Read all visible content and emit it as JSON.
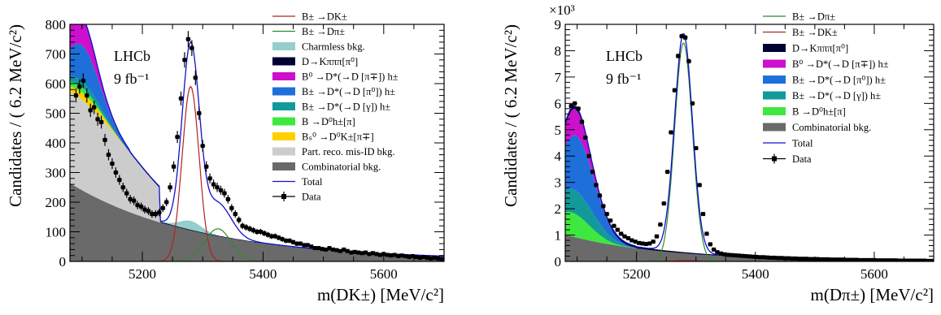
{
  "chart_data": [
    {
      "type": "line",
      "panel": "left",
      "experiment_label": "LHCb",
      "luminosity_label": "9 fb⁻¹",
      "ylabel": "Candidates / ( 6.2 MeV/c²)",
      "xlabel": "m(DK±) [MeV/c²]",
      "xlim": [
        5080,
        5700
      ],
      "ylim": [
        0,
        800
      ],
      "y_multiplier": "",
      "x_ticks": [
        "5200",
        "5400",
        "5600"
      ],
      "y_ticks": [
        "0",
        "100",
        "200",
        "300",
        "400",
        "500",
        "600",
        "700",
        "800"
      ],
      "legend": [
        {
          "label": "B± →DK±",
          "style": "line",
          "color": "#b22222"
        },
        {
          "label": "B± →Dπ±",
          "style": "line",
          "color": "#2e8b2e"
        },
        {
          "label": "Charmless bkg.",
          "style": "fill",
          "color": "#96cdcd"
        },
        {
          "label": "D→Kπππ[π⁰]",
          "style": "fill",
          "color": "#000033"
        },
        {
          "label": "B⁰ →D*(→D [π∓]) h±",
          "style": "fill",
          "color": "#cc10cc"
        },
        {
          "label": "B± →D*(→D [π⁰]) h±",
          "style": "fill",
          "color": "#1e6fd9"
        },
        {
          "label": "B± →D*(→D [γ]) h±",
          "style": "fill",
          "color": "#129a9a"
        },
        {
          "label": "B →D⁰h±[π]",
          "style": "fill",
          "color": "#3ee83e"
        },
        {
          "label": "Bₛ⁰ →D⁰K±[π∓]",
          "style": "fill",
          "color": "#ffd000"
        },
        {
          "label": "Part. reco. mis-ID bkg.",
          "style": "fill",
          "color": "#cccccc"
        },
        {
          "label": "Combinatorial bkg.",
          "style": "fill",
          "color": "#6a6a6a"
        },
        {
          "label": "Total",
          "style": "line",
          "color": "#1010cc"
        },
        {
          "label": "Data",
          "style": "marker",
          "color": "#000000"
        }
      ],
      "peak_signal": {
        "mean": 5280,
        "sigma": 14,
        "amplitude": 590
      },
      "peak_misid": {
        "mean": 5325,
        "sigma": 22,
        "amplitude": 110
      },
      "comb_start": 260,
      "data_points": [
        [
          5090,
          560
        ],
        [
          5096,
          590
        ],
        [
          5102,
          610
        ],
        [
          5108,
          560
        ],
        [
          5114,
          510
        ],
        [
          5120,
          520
        ],
        [
          5126,
          480
        ],
        [
          5132,
          470
        ],
        [
          5138,
          410
        ],
        [
          5144,
          360
        ],
        [
          5150,
          330
        ],
        [
          5156,
          300
        ],
        [
          5162,
          275
        ],
        [
          5168,
          250
        ],
        [
          5174,
          230
        ],
        [
          5180,
          210
        ],
        [
          5186,
          205
        ],
        [
          5192,
          190
        ],
        [
          5198,
          185
        ],
        [
          5204,
          175
        ],
        [
          5210,
          170
        ],
        [
          5216,
          160
        ],
        [
          5222,
          160
        ],
        [
          5228,
          165
        ],
        [
          5234,
          180
        ],
        [
          5240,
          200
        ],
        [
          5246,
          250
        ],
        [
          5252,
          320
        ],
        [
          5258,
          420
        ],
        [
          5264,
          550
        ],
        [
          5270,
          680
        ],
        [
          5276,
          750
        ],
        [
          5282,
          720
        ],
        [
          5288,
          620
        ],
        [
          5294,
          500
        ],
        [
          5300,
          390
        ],
        [
          5306,
          320
        ],
        [
          5312,
          280
        ],
        [
          5318,
          260
        ],
        [
          5324,
          250
        ],
        [
          5330,
          240
        ],
        [
          5336,
          230
        ],
        [
          5342,
          210
        ],
        [
          5348,
          180
        ],
        [
          5354,
          160
        ],
        [
          5360,
          140
        ],
        [
          5366,
          120
        ],
        [
          5372,
          115
        ],
        [
          5378,
          110
        ],
        [
          5384,
          105
        ],
        [
          5390,
          100
        ],
        [
          5396,
          100
        ],
        [
          5402,
          95
        ],
        [
          5408,
          90
        ],
        [
          5414,
          85
        ],
        [
          5420,
          85
        ],
        [
          5426,
          80
        ],
        [
          5432,
          75
        ],
        [
          5438,
          70
        ],
        [
          5444,
          70
        ],
        [
          5450,
          65
        ],
        [
          5456,
          60
        ],
        [
          5462,
          60
        ],
        [
          5468,
          55
        ],
        [
          5474,
          55
        ],
        [
          5480,
          50
        ],
        [
          5486,
          45
        ],
        [
          5492,
          45
        ],
        [
          5498,
          42
        ],
        [
          5504,
          40
        ],
        [
          5510,
          45
        ],
        [
          5516,
          40
        ],
        [
          5522,
          38
        ],
        [
          5528,
          35
        ],
        [
          5534,
          40
        ],
        [
          5540,
          35
        ],
        [
          5546,
          30
        ],
        [
          5552,
          32
        ],
        [
          5558,
          30
        ],
        [
          5564,
          28
        ],
        [
          5570,
          30
        ],
        [
          5576,
          25
        ],
        [
          5582,
          28
        ],
        [
          5588,
          25
        ],
        [
          5594,
          22
        ],
        [
          5600,
          25
        ],
        [
          5606,
          22
        ],
        [
          5612,
          20
        ],
        [
          5618,
          22
        ],
        [
          5624,
          18
        ],
        [
          5630,
          20
        ],
        [
          5636,
          18
        ],
        [
          5642,
          15
        ],
        [
          5648,
          18
        ],
        [
          5654,
          15
        ],
        [
          5660,
          12
        ],
        [
          5666,
          15
        ],
        [
          5672,
          12
        ],
        [
          5678,
          10
        ],
        [
          5684,
          12
        ],
        [
          5690,
          10
        ],
        [
          5696,
          8
        ]
      ]
    },
    {
      "type": "line",
      "panel": "right",
      "experiment_label": "LHCb",
      "luminosity_label": "9 fb⁻¹",
      "ylabel": "Candidates / ( 6.2 MeV/c²)",
      "xlabel": "m(Dπ±) [MeV/c²]",
      "xlim": [
        5080,
        5700
      ],
      "ylim": [
        0,
        9
      ],
      "y_multiplier": "×10³",
      "x_ticks": [
        "5200",
        "5400",
        "5600"
      ],
      "y_ticks": [
        "0",
        "1",
        "2",
        "3",
        "4",
        "5",
        "6",
        "7",
        "8",
        "9"
      ],
      "legend": [
        {
          "label": "B± →Dπ±",
          "style": "line",
          "color": "#2e8b2e"
        },
        {
          "label": "B± →DK±",
          "style": "line",
          "color": "#b22222"
        },
        {
          "label": "D→Kπππ[π⁰]",
          "style": "fill",
          "color": "#000033"
        },
        {
          "label": "B⁰ →D*(→D [π∓]) h±",
          "style": "fill",
          "color": "#cc10cc"
        },
        {
          "label": "B± →D*(→D [π⁰]) h±",
          "style": "fill",
          "color": "#1e6fd9"
        },
        {
          "label": "B± →D*(→D [γ]) h±",
          "style": "fill",
          "color": "#129a9a"
        },
        {
          "label": "B →D⁰h±[π]",
          "style": "fill",
          "color": "#3ee83e"
        },
        {
          "label": "Combinatorial bkg.",
          "style": "fill",
          "color": "#6a6a6a"
        },
        {
          "label": "Total",
          "style": "line",
          "color": "#1010cc"
        },
        {
          "label": "Data",
          "style": "marker",
          "color": "#000000"
        }
      ],
      "peak_signal": {
        "mean": 5279,
        "sigma": 15,
        "amplitude": 8.3
      },
      "comb_start": 1.0,
      "data_points": [
        [
          5090,
          5.9
        ],
        [
          5096,
          6.0
        ],
        [
          5102,
          5.8
        ],
        [
          5108,
          5.3
        ],
        [
          5114,
          4.7
        ],
        [
          5120,
          4.0
        ],
        [
          5126,
          3.4
        ],
        [
          5132,
          2.9
        ],
        [
          5138,
          2.5
        ],
        [
          5144,
          2.1
        ],
        [
          5150,
          1.8
        ],
        [
          5156,
          1.55
        ],
        [
          5162,
          1.35
        ],
        [
          5168,
          1.2
        ],
        [
          5174,
          1.05
        ],
        [
          5180,
          0.95
        ],
        [
          5186,
          0.88
        ],
        [
          5192,
          0.8
        ],
        [
          5198,
          0.75
        ],
        [
          5204,
          0.7
        ],
        [
          5210,
          0.68
        ],
        [
          5216,
          0.66
        ],
        [
          5222,
          0.68
        ],
        [
          5228,
          0.75
        ],
        [
          5234,
          0.95
        ],
        [
          5240,
          1.4
        ],
        [
          5246,
          2.2
        ],
        [
          5252,
          3.4
        ],
        [
          5258,
          4.9
        ],
        [
          5264,
          6.5
        ],
        [
          5270,
          7.8
        ],
        [
          5276,
          8.55
        ],
        [
          5282,
          8.5
        ],
        [
          5288,
          7.6
        ],
        [
          5294,
          6.0
        ],
        [
          5300,
          4.3
        ],
        [
          5306,
          2.9
        ],
        [
          5312,
          1.8
        ],
        [
          5318,
          1.05
        ],
        [
          5324,
          0.65
        ],
        [
          5330,
          0.45
        ],
        [
          5336,
          0.35
        ],
        [
          5342,
          0.3
        ],
        [
          5348,
          0.27
        ],
        [
          5354,
          0.25
        ],
        [
          5360,
          0.24
        ],
        [
          5366,
          0.23
        ],
        [
          5372,
          0.22
        ],
        [
          5378,
          0.21
        ],
        [
          5384,
          0.2
        ],
        [
          5390,
          0.19
        ],
        [
          5396,
          0.18
        ],
        [
          5402,
          0.17
        ],
        [
          5408,
          0.16
        ],
        [
          5414,
          0.16
        ],
        [
          5420,
          0.15
        ],
        [
          5426,
          0.14
        ],
        [
          5432,
          0.14
        ],
        [
          5438,
          0.13
        ],
        [
          5444,
          0.13
        ],
        [
          5450,
          0.12
        ],
        [
          5456,
          0.12
        ],
        [
          5462,
          0.11
        ],
        [
          5468,
          0.11
        ],
        [
          5474,
          0.1
        ],
        [
          5480,
          0.1
        ],
        [
          5486,
          0.1
        ],
        [
          5492,
          0.09
        ],
        [
          5498,
          0.09
        ],
        [
          5504,
          0.09
        ],
        [
          5510,
          0.08
        ],
        [
          5516,
          0.08
        ],
        [
          5522,
          0.08
        ],
        [
          5528,
          0.07
        ],
        [
          5534,
          0.07
        ],
        [
          5540,
          0.07
        ],
        [
          5546,
          0.07
        ],
        [
          5552,
          0.06
        ],
        [
          5558,
          0.06
        ],
        [
          5564,
          0.06
        ],
        [
          5570,
          0.06
        ],
        [
          5576,
          0.05
        ],
        [
          5582,
          0.05
        ],
        [
          5588,
          0.05
        ],
        [
          5594,
          0.05
        ],
        [
          5600,
          0.05
        ],
        [
          5606,
          0.04
        ],
        [
          5612,
          0.04
        ],
        [
          5618,
          0.04
        ],
        [
          5624,
          0.04
        ],
        [
          5630,
          0.04
        ],
        [
          5636,
          0.04
        ],
        [
          5642,
          0.03
        ],
        [
          5648,
          0.03
        ],
        [
          5654,
          0.03
        ],
        [
          5660,
          0.03
        ],
        [
          5666,
          0.03
        ],
        [
          5672,
          0.03
        ],
        [
          5678,
          0.03
        ],
        [
          5684,
          0.03
        ],
        [
          5690,
          0.02
        ],
        [
          5696,
          0.02
        ]
      ]
    }
  ]
}
